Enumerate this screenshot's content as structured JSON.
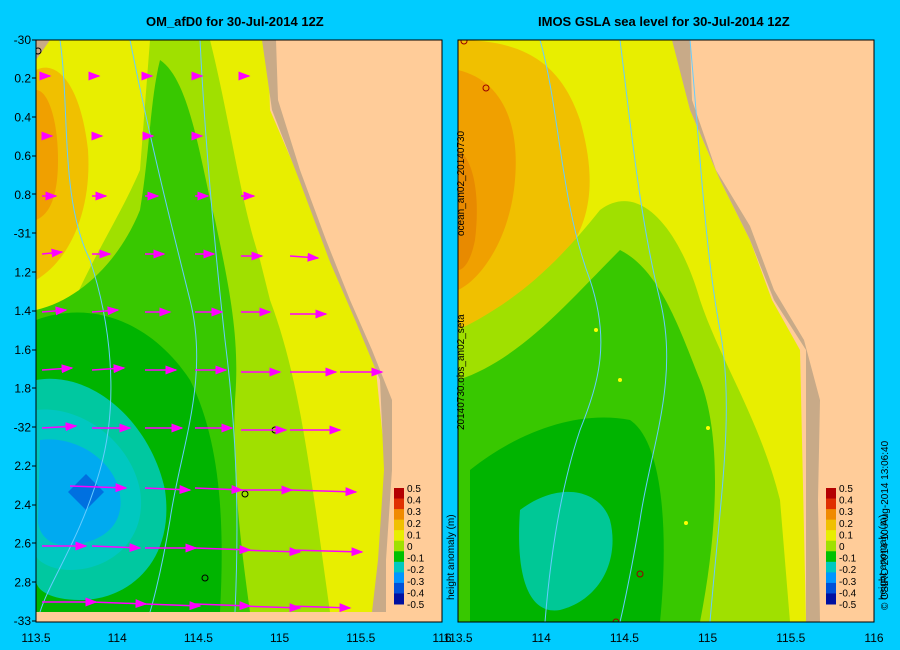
{
  "left_panel": {
    "title": "OM_afD0 for 30-Jul-2014 12Z",
    "y_labels": [
      "-30",
      "0.2",
      "0.4",
      "0.6",
      "0.8",
      "-31",
      "1.2",
      "1.4",
      "1.6",
      "1.8",
      "-32",
      "2.2",
      "2.4",
      "2.6",
      "2.8",
      "-33"
    ],
    "x_labels": [
      "113.5",
      "114",
      "114.5",
      "115",
      "115.5",
      "116"
    ]
  },
  "right_panel": {
    "title": "IMOS GSLA sea level  for 30-Jul-2014 12Z",
    "x_labels": [
      "113.5",
      "114",
      "114.5",
      "115",
      "115.5",
      "116"
    ],
    "side_text_1": "ocean_an02_20140730",
    "side_text_2": "20140730.obs_an02_seta"
  },
  "colorbar": {
    "ticks": [
      "0.5",
      "0.4",
      "0.3",
      "0.2",
      "0.1",
      "0",
      "-0.1",
      "-0.2",
      "-0.3",
      "-0.4",
      "-0.5"
    ],
    "label": "height anomaly (m)",
    "colors": [
      "#b40000",
      "#e03000",
      "#f08a00",
      "#f0c000",
      "#e8ee00",
      "#a0e000",
      "#00c000",
      "#00c8c0",
      "#0096ff",
      "#0050d8",
      "#0010a0"
    ]
  },
  "right_side_text": "© CSIRO 2014   10-Aug-2014 13:06:40"
}
